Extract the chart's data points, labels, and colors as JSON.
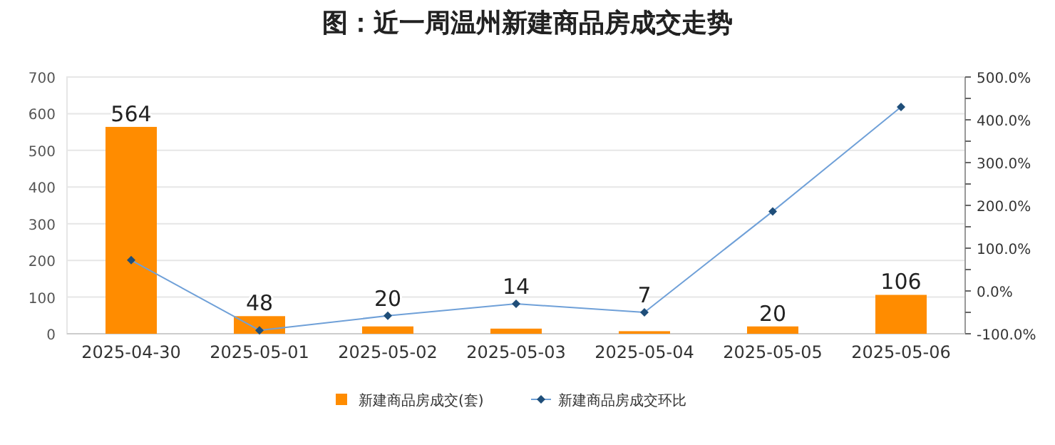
{
  "chart_data": {
    "type": "bar",
    "title": "图：近一周温州新建商品房成交走势",
    "categories": [
      "2025-04-30",
      "2025-05-01",
      "2025-05-02",
      "2025-05-03",
      "2025-05-04",
      "2025-05-05",
      "2025-05-06"
    ],
    "series": [
      {
        "name": "新建商品房成交(套)",
        "color": "#ff8c00",
        "values": [
          564,
          48,
          20,
          14,
          7,
          20,
          106
        ],
        "value_labels": [
          "564",
          "48",
          "20",
          "14",
          "7",
          "20",
          "106"
        ]
      },
      {
        "name": "新建商品房成交环比",
        "type": "line",
        "axis": "y2",
        "color": "#6fa0d8",
        "marker": "diamond",
        "values": [
          72,
          -92,
          -58,
          -30,
          -50,
          186,
          430
        ]
      }
    ],
    "ylim": [
      0,
      700
    ],
    "yticks": [
      0,
      100,
      200,
      300,
      400,
      500,
      600,
      700
    ],
    "y2lim": [
      -100,
      500
    ],
    "y2ticks": [
      {
        "value": -100,
        "label": "-100.0%"
      },
      {
        "value": -50,
        "label": null
      },
      {
        "value": 0,
        "label": "0.0%"
      },
      {
        "value": 50,
        "label": null
      },
      {
        "value": 100,
        "label": "100.0%"
      },
      {
        "value": 150,
        "label": null
      },
      {
        "value": 200,
        "label": "200.0%"
      },
      {
        "value": 250,
        "label": null
      },
      {
        "value": 300,
        "label": "300.0%"
      },
      {
        "value": 350,
        "label": null
      },
      {
        "value": 400,
        "label": "400.0%"
      },
      {
        "value": 450,
        "label": null
      },
      {
        "value": 500,
        "label": "500.0%"
      }
    ],
    "grid": "y",
    "legend": "bottom"
  }
}
